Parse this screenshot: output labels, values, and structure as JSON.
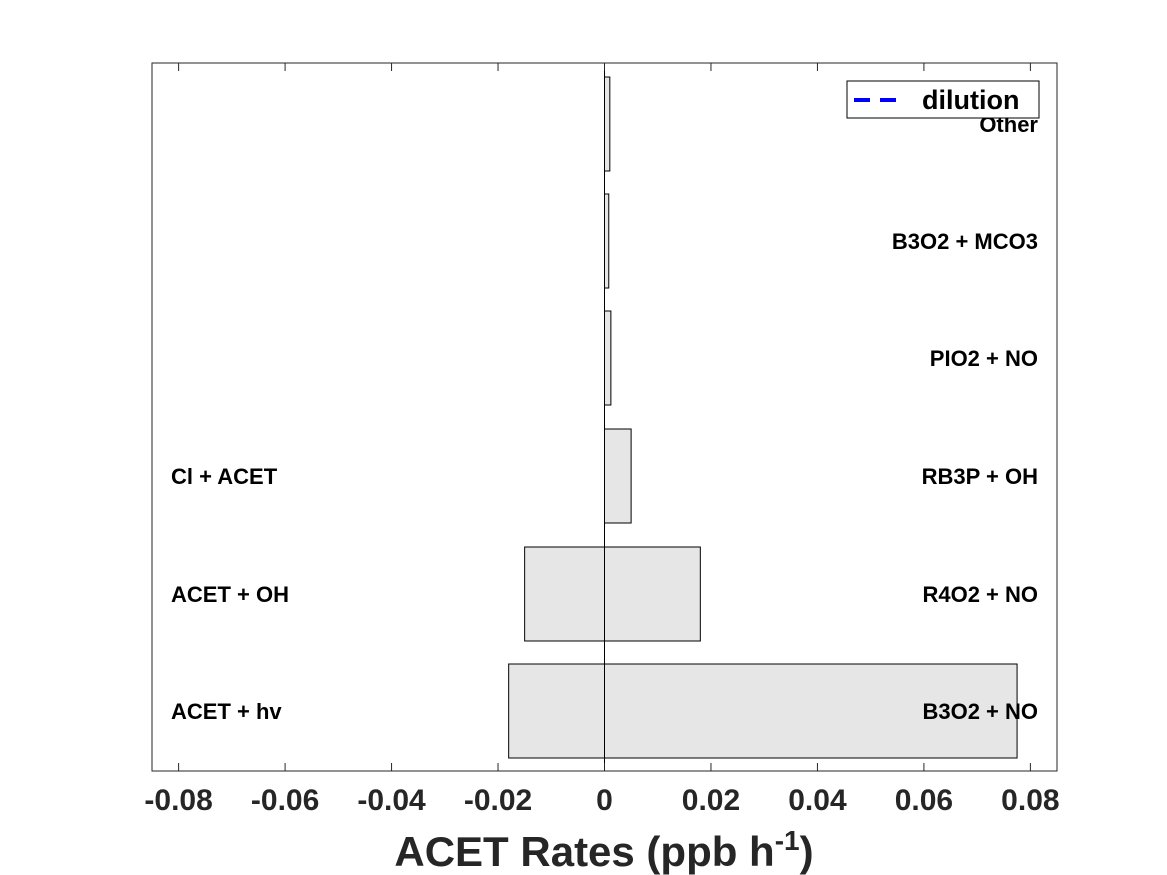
{
  "chart_data": {
    "type": "bar",
    "orientation": "horizontal",
    "xlabel_main": "ACET Rates (ppb h",
    "xlabel_sup": "-1",
    "xlabel_tail": ")",
    "xlim": [
      -0.085,
      0.085
    ],
    "xticks": [
      -0.08,
      -0.06,
      -0.04,
      -0.02,
      0,
      0.02,
      0.04,
      0.06,
      0.08
    ],
    "xtick_labels": [
      "-0.08",
      "-0.06",
      "-0.04",
      "-0.02",
      "0",
      "0.02",
      "0.04",
      "0.06",
      "0.08"
    ],
    "grid": false,
    "bar_color": "#e6e6e6",
    "bar_edge_color": "#000000",
    "rows": [
      {
        "production_label": "B3O2 + NO",
        "production": 0.0775,
        "loss_label": "ACET + hv",
        "loss": -0.018
      },
      {
        "production_label": "R4O2 + NO",
        "production": 0.018,
        "loss_label": "ACET + OH",
        "loss": -0.015
      },
      {
        "production_label": "RB3P + OH",
        "production": 0.005,
        "loss_label": "Cl + ACET",
        "loss": 0
      },
      {
        "production_label": "PIO2 + NO",
        "production": 0.0012,
        "loss_label": "",
        "loss": 0
      },
      {
        "production_label": "B3O2 + MCO3",
        "production": 0.0008,
        "loss_label": "",
        "loss": 0
      },
      {
        "production_label": "Other",
        "production": 0.001,
        "loss_label": "",
        "loss": 0
      }
    ],
    "legend": {
      "position": "top-right",
      "entries": [
        {
          "name": "dilution",
          "style": "dashed",
          "color": "#0000ff"
        }
      ]
    }
  }
}
